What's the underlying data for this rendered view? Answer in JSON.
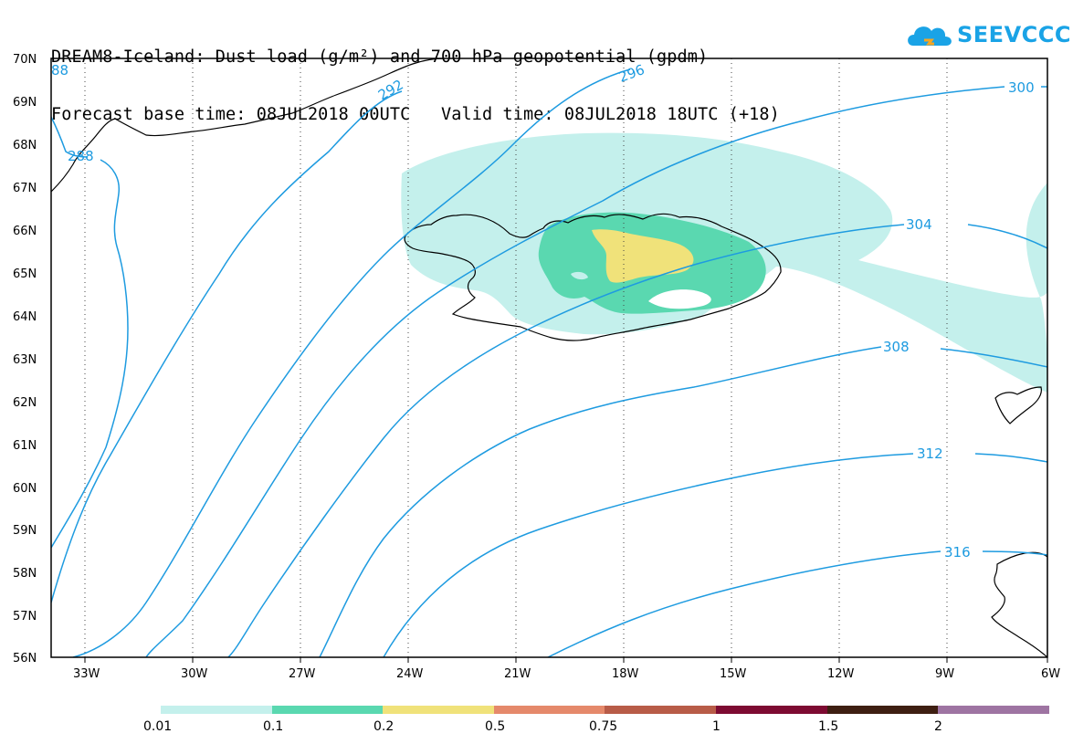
{
  "title": {
    "line1": "DREAM8-Iceland: Dust load (g/m²) and 700 hPa geopotential (gpdm)",
    "line2": "Forecast base time: 08JUL2018 00UTC   Valid time: 08JUL2018 18UTC (+18)"
  },
  "logo": {
    "text": "SEEVCCC",
    "icon": "cloud-icon",
    "color": "#1aa3e6",
    "accent": "#f5a623"
  },
  "map": {
    "lon_range": [
      -34.25,
      -6
    ],
    "lat_range": [
      56,
      70
    ],
    "lat_labels": [
      "70N",
      "69N",
      "68N",
      "67N",
      "66N",
      "65N",
      "64N",
      "63N",
      "62N",
      "61N",
      "60N",
      "59N",
      "58N",
      "57N",
      "56N"
    ],
    "lon_labels": [
      "33W",
      "30W",
      "27W",
      "24W",
      "21W",
      "18W",
      "15W",
      "12W",
      "9W",
      "6W"
    ],
    "contour_color": "#1e9be0",
    "contour_labels": [
      "288",
      "88",
      "292",
      "296",
      "300",
      "304",
      "308",
      "312",
      "316"
    ],
    "dust_region_note": ""
  },
  "colorbar": {
    "colors": [
      "#c4f0ec",
      "#5ad8b0",
      "#f0e27a",
      "#e5896b",
      "#b85c48",
      "#7d0b32",
      "#3e1f12",
      "#9e74a2"
    ],
    "labels": [
      "0.01",
      "0.1",
      "0.2",
      "0.5",
      "0.75",
      "1",
      "1.5",
      "2"
    ]
  }
}
